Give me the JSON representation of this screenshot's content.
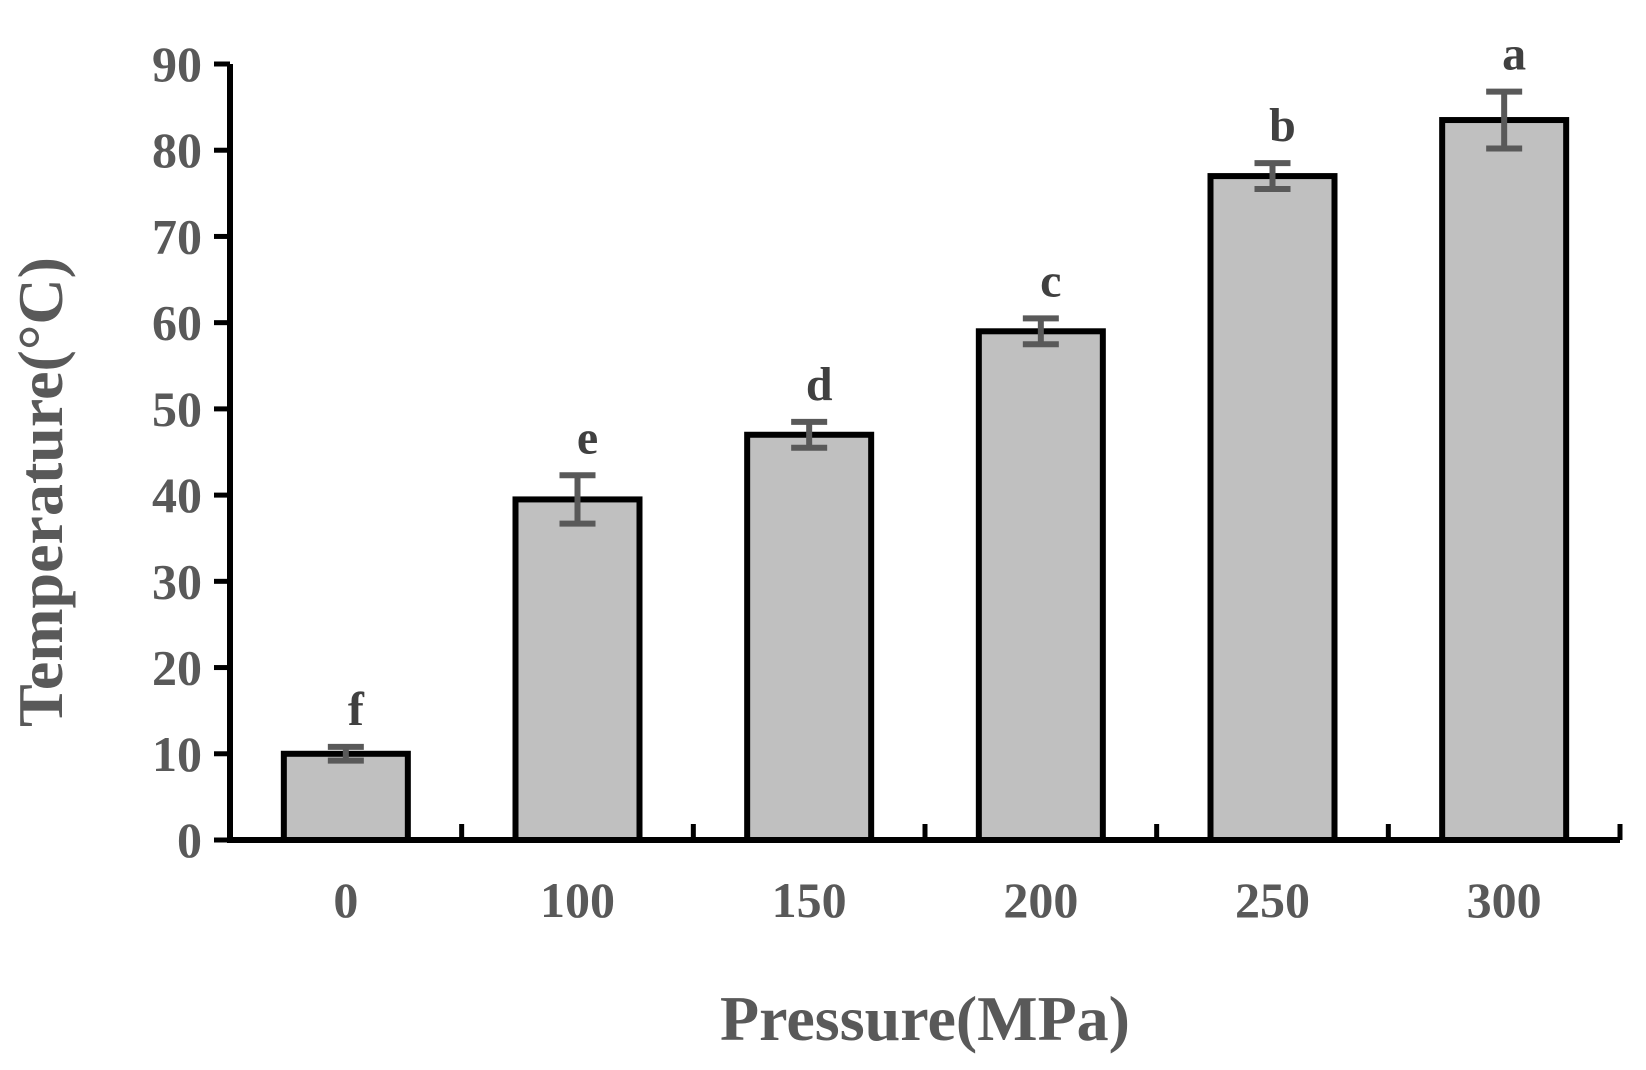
{
  "chart_data": {
    "type": "bar",
    "title": "",
    "xlabel": "Pressure(MPa)",
    "ylabel": "Temperature(°C)",
    "ylim": [
      0,
      90
    ],
    "yticks": [
      "0",
      "10",
      "20",
      "30",
      "40",
      "50",
      "60",
      "70",
      "80",
      "90"
    ],
    "categories": [
      "0",
      "100",
      "150",
      "200",
      "250",
      "300"
    ],
    "values": [
      10,
      39.5,
      47,
      59,
      77,
      83.5
    ],
    "errors": [
      0.8,
      2.8,
      1.5,
      1.5,
      1.5,
      3.3
    ],
    "significance": [
      "f",
      "e",
      "d",
      "c",
      "b",
      "a"
    ],
    "grid": false,
    "legend": "none",
    "colors": {
      "bar_fill": "#c0c0c0",
      "bar_stroke": "#000000",
      "axis": "#000000",
      "error_bar": "#595959",
      "text": "#595959"
    }
  }
}
